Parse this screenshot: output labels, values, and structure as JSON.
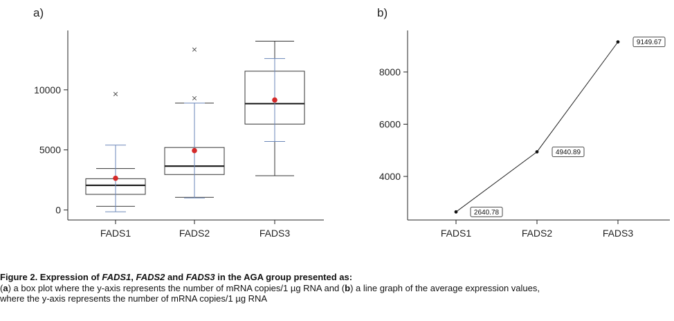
{
  "panels": {
    "a": "a)",
    "b": "b)"
  },
  "chart_data": [
    {
      "type": "box",
      "categories": [
        "FADS1",
        "FADS2",
        "FADS3"
      ],
      "yticks": [
        0,
        5000,
        10000
      ],
      "ylim": [
        -500,
        14500
      ],
      "grid": false,
      "boxes": [
        {
          "name": "FADS1",
          "q1": 1300,
          "median": 2050,
          "q3": 2600,
          "whisker_low": 300,
          "whisker_high": 3450,
          "ci_low": -150,
          "ci_high": 5400,
          "mean": 2640.78,
          "outliers": [
            9650
          ]
        },
        {
          "name": "FADS2",
          "q1": 2950,
          "median": 3650,
          "q3": 5200,
          "whisker_low": 1050,
          "whisker_high": 8900,
          "ci_low": 1000,
          "ci_high": 8900,
          "mean": 4940.89,
          "outliers": [
            9300,
            13350
          ]
        },
        {
          "name": "FADS3",
          "q1": 7150,
          "median": 8850,
          "q3": 11550,
          "whisker_low": 2850,
          "whisker_high": 14050,
          "ci_low": 5700,
          "ci_high": 12600,
          "mean": 9149.67,
          "outliers": []
        }
      ]
    },
    {
      "type": "line",
      "categories": [
        "FADS1",
        "FADS2",
        "FADS3"
      ],
      "values": [
        2640.78,
        4940.89,
        9149.67
      ],
      "data_labels": [
        "2640.78",
        "4940.89",
        "9149.67"
      ],
      "yticks": [
        4000,
        6000,
        8000
      ],
      "ylim": [
        2300,
        9600
      ],
      "grid": false
    }
  ],
  "caption": {
    "title_prefix": "Figure 2. Expression of ",
    "gene1": "FADS1",
    "sep1": ", ",
    "gene2": "FADS2",
    "sep2": " and ",
    "gene3": "FADS3",
    "title_suffix": " in the AGA group presented as:",
    "a_open": "(",
    "a_letter": "a",
    "a_text": ") a box plot where the y-axis represents the number of mRNA copies/1 µg RNA and (",
    "b_letter": "b",
    "b_text": ") a line graph of the average expression values,",
    "line3": "where the y-axis represents the number of mRNA copies/1 µg RNA"
  },
  "colors": {
    "box": "#333333",
    "ci": "#6a86b8",
    "mean_marker": "#d42a2a",
    "line": "#222222"
  }
}
